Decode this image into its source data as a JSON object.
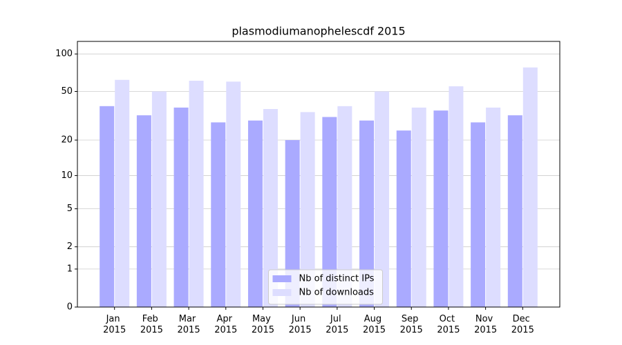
{
  "chart_data": {
    "type": "bar",
    "title": "plasmodiumanophelescdf 2015",
    "categories": [
      "Jan 2015",
      "Feb 2015",
      "Mar 2015",
      "Apr 2015",
      "May 2015",
      "Jun 2015",
      "Jul 2015",
      "Aug 2015",
      "Sep 2015",
      "Oct 2015",
      "Nov 2015",
      "Dec 2015"
    ],
    "series": [
      {
        "name": "Nb of distinct IPs",
        "color": "#aaaaff",
        "values": [
          38,
          32,
          37,
          28,
          29,
          20,
          31,
          29,
          24,
          35,
          28,
          32
        ]
      },
      {
        "name": "Nb of downloads",
        "color": "#ddddff",
        "values": [
          62,
          50,
          61,
          60,
          36,
          34,
          38,
          50,
          37,
          55,
          37,
          78
        ]
      }
    ],
    "yscale": "log1p",
    "ylim": [
      0,
      126
    ],
    "yticks": [
      0,
      1,
      2,
      5,
      10,
      20,
      50,
      100
    ],
    "grid": true,
    "legend": "lower center"
  }
}
